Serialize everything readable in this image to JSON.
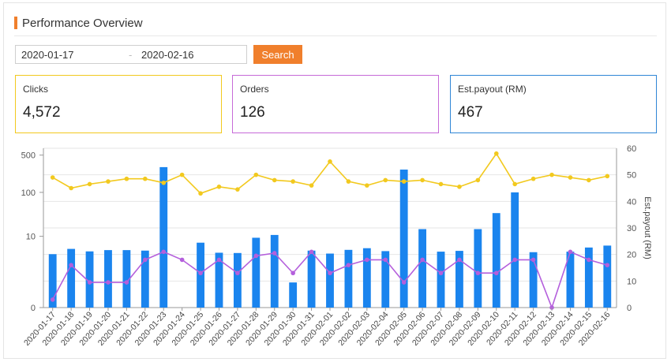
{
  "header": {
    "title": "Performance Overview"
  },
  "filters": {
    "start_date": "2020-01-17",
    "separator": "-",
    "end_date": "2020-02-16",
    "search_label": "Search"
  },
  "cards": {
    "clicks": {
      "label": "Clicks",
      "value": "4,572"
    },
    "orders": {
      "label": "Orders",
      "value": "126"
    },
    "payout": {
      "label": "Est.payout (RM)",
      "value": "467"
    }
  },
  "colors": {
    "accent": "#f07f2c",
    "clicks": "#1a84ee",
    "orders": "#b45fdc",
    "payout": "#f2c91e"
  },
  "chart_data": {
    "type": "bar",
    "categories": [
      "2020-01-17",
      "2020-01-18",
      "2020-01-19",
      "2020-01-20",
      "2020-01-21",
      "2020-01-22",
      "2020-01-23",
      "2020-01-24",
      "2020-01-25",
      "2020-01-26",
      "2020-01-27",
      "2020-01-28",
      "2020-01-29",
      "2020-01-30",
      "2020-01-31",
      "2020-02-01",
      "2020-02-02",
      "2020-02-03",
      "2020-02-04",
      "2020-02-05",
      "2020-02-06",
      "2020-02-07",
      "2020-02-08",
      "2020-02-09",
      "2020-02-10",
      "2020-02-11",
      "2020-02-12",
      "2020-02-13",
      "2020-02-14",
      "2020-02-15",
      "2020-02-16"
    ],
    "series": [
      {
        "type": "bar",
        "axis": "left",
        "values": [
          1,
          3,
          2,
          2.5,
          2.5,
          2.3,
          300,
          0,
          6,
          1.5,
          1.4,
          9,
          11,
          0.5,
          2.3,
          1.2,
          2.6,
          3.3,
          2.1,
          270,
          16,
          1.9,
          2.2,
          16,
          38,
          100,
          1.7,
          0,
          1.9,
          3.6,
          4.5
        ]
      },
      {
        "type": "line",
        "axis": "right",
        "values": [
          3,
          16,
          9.5,
          9.5,
          9.5,
          18,
          21,
          18,
          13,
          18,
          13,
          19.5,
          20.5,
          13,
          21,
          13,
          16,
          18,
          18,
          9.5,
          18,
          13,
          18,
          13,
          13,
          18,
          18,
          0,
          21,
          18,
          16
        ]
      },
      {
        "type": "line",
        "axis": "right",
        "values": [
          49,
          45,
          46.5,
          47.5,
          48.5,
          48.5,
          47,
          50,
          43,
          45.5,
          44.5,
          50,
          48,
          47.5,
          46,
          55,
          47.5,
          46,
          48,
          47.5,
          48,
          46.5,
          45.5,
          48,
          58,
          46.5,
          48.5,
          50,
          49,
          48,
          49.5
        ]
      }
    ],
    "y_left": {
      "scale": "log",
      "ticks": [
        0,
        10,
        100,
        500
      ],
      "tick_labels": [
        "0",
        "10",
        "100",
        "500"
      ]
    },
    "y_right": {
      "label": "Est.payout (RM)",
      "range": [
        0,
        60
      ],
      "ticks": [
        0,
        10,
        20,
        30,
        40,
        50,
        60
      ]
    },
    "grid": true
  }
}
